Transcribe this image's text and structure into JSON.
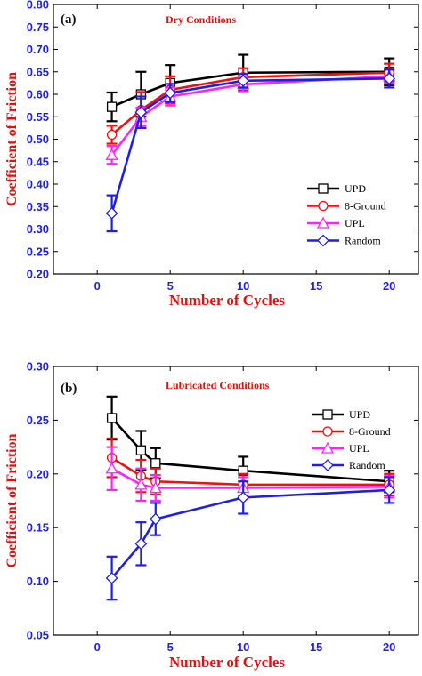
{
  "chart_data": [
    {
      "type": "line",
      "panel_label": "(a)",
      "title": "Dry Conditions",
      "xlabel": "Number of Cycles",
      "ylabel": "Coefficient of Friction",
      "xlim": [
        -3,
        22
      ],
      "ylim": [
        0.2,
        0.8
      ],
      "xticks": [
        0,
        5,
        10,
        15,
        20
      ],
      "yticks": [
        0.2,
        0.25,
        0.3,
        0.35,
        0.4,
        0.45,
        0.5,
        0.55,
        0.6,
        0.65,
        0.7,
        0.75,
        0.8
      ],
      "x": [
        1,
        3,
        5,
        10,
        20
      ],
      "legend_position": "center-right",
      "series": [
        {
          "name": "UPD",
          "color": "#000000",
          "marker": "square",
          "values": [
            0.572,
            0.6,
            0.625,
            0.648,
            0.65
          ],
          "errors": [
            0.032,
            0.05,
            0.04,
            0.04,
            0.03
          ]
        },
        {
          "name": "8-Ground",
          "color": "#ee1111",
          "marker": "circle",
          "values": [
            0.51,
            0.565,
            0.61,
            0.638,
            0.648
          ],
          "errors": [
            0.02,
            0.04,
            0.03,
            0.02,
            0.02
          ]
        },
        {
          "name": "UPL",
          "color": "#ff22ff",
          "marker": "triangle",
          "values": [
            0.465,
            0.55,
            0.595,
            0.622,
            0.64
          ],
          "errors": [
            0.02,
            0.02,
            0.02,
            0.015,
            0.015
          ]
        },
        {
          "name": "Random",
          "color": "#1e1ee6",
          "marker": "diamond",
          "values": [
            0.335,
            0.56,
            0.603,
            0.63,
            0.635
          ],
          "errors": [
            0.04,
            0.035,
            0.02,
            0.015,
            0.02
          ]
        }
      ]
    },
    {
      "type": "line",
      "panel_label": "(b)",
      "title": "Lubricated Conditions",
      "xlabel": "Number of Cycles",
      "ylabel": "Coefficient of Friction",
      "xlim": [
        -3,
        22
      ],
      "ylim": [
        0.05,
        0.3
      ],
      "xticks": [
        0,
        5,
        10,
        15,
        20
      ],
      "yticks": [
        0.05,
        0.1,
        0.15,
        0.2,
        0.25,
        0.3
      ],
      "x": [
        1,
        3,
        4,
        10,
        20
      ],
      "legend_position": "top-right",
      "series": [
        {
          "name": "UPD",
          "color": "#000000",
          "marker": "square",
          "values": [
            0.252,
            0.222,
            0.21,
            0.203,
            0.193
          ],
          "errors": [
            0.02,
            0.018,
            0.014,
            0.013,
            0.01
          ]
        },
        {
          "name": "8-Ground",
          "color": "#ee1111",
          "marker": "circle",
          "values": [
            0.215,
            0.198,
            0.193,
            0.19,
            0.19
          ],
          "errors": [
            0.018,
            0.015,
            0.012,
            0.01,
            0.01
          ]
        },
        {
          "name": "UPL",
          "color": "#ff22ff",
          "marker": "triangle",
          "values": [
            0.205,
            0.19,
            0.187,
            0.187,
            0.188
          ],
          "errors": [
            0.02,
            0.015,
            0.012,
            0.01,
            0.01
          ]
        },
        {
          "name": "Random",
          "color": "#1e1ee6",
          "marker": "diamond",
          "values": [
            0.103,
            0.135,
            0.158,
            0.178,
            0.185
          ],
          "errors": [
            0.02,
            0.02,
            0.015,
            0.015,
            0.012
          ]
        }
      ]
    }
  ]
}
